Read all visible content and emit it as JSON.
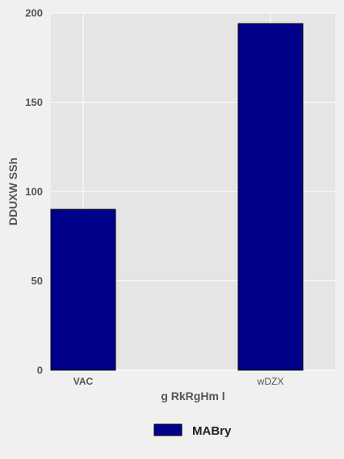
{
  "chart_data": {
    "type": "bar",
    "categories": [
      "VAC",
      "wDZX"
    ],
    "series": [
      {
        "name": "MABry",
        "values": [
          90,
          194
        ]
      }
    ],
    "xlabel": "g RkRgHm l",
    "ylabel": "DDUXW SSh",
    "ylim": [
      0,
      200
    ],
    "yticks": [
      0,
      50,
      100,
      150,
      200
    ],
    "grid": true,
    "legend_position": "bottom-center",
    "colors": {
      "bar_fill": "#00008b",
      "bar_edge": "#000000",
      "plot_background": "#e5e5e5",
      "figure_background": "#f0f0f0",
      "grid": "#ffffff"
    }
  }
}
